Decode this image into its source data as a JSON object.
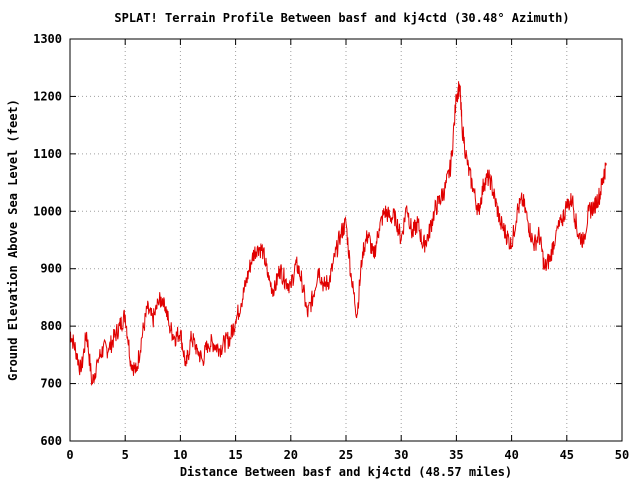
{
  "chart_data": {
    "type": "line",
    "title": "SPLAT! Terrain Profile Between basf and kj4ctd (30.48° Azimuth)",
    "xlabel": "Distance Between basf and kj4ctd (48.57 miles)",
    "ylabel": "Ground Elevation Above Sea Level (feet)",
    "xlim": [
      0,
      50
    ],
    "ylim": [
      600,
      1300
    ],
    "xticks": [
      "0",
      "5",
      "10",
      "15",
      "20",
      "25",
      "30",
      "35",
      "40",
      "45",
      "50"
    ],
    "yticks": [
      "600",
      "700",
      "800",
      "900",
      "1000",
      "1100",
      "1200",
      "1300"
    ],
    "grid": true,
    "series": [
      {
        "color": "#e00000",
        "x": [
          0,
          0.5,
          1.0,
          1.5,
          2.0,
          2.5,
          3.0,
          3.5,
          4.0,
          4.5,
          5.0,
          5.5,
          6.0,
          6.5,
          7.0,
          7.5,
          8.0,
          8.5,
          9.0,
          9.5,
          10.0,
          10.5,
          11.0,
          11.5,
          12.0,
          12.5,
          13.0,
          13.5,
          14.0,
          14.5,
          15.0,
          15.5,
          16.0,
          16.5,
          17.0,
          17.5,
          18.0,
          18.5,
          19.0,
          19.5,
          20.0,
          20.5,
          21.0,
          21.5,
          22.0,
          22.5,
          23.0,
          23.5,
          24.0,
          24.5,
          25.0,
          25.5,
          26.0,
          26.5,
          27.0,
          27.5,
          28.0,
          28.5,
          29.0,
          29.5,
          30.0,
          30.5,
          31.0,
          31.5,
          32.0,
          32.5,
          33.0,
          33.5,
          34.0,
          34.5,
          35.0,
          35.3,
          35.5,
          36.0,
          36.5,
          37.0,
          37.5,
          38.0,
          38.5,
          39.0,
          39.5,
          40.0,
          40.5,
          41.0,
          41.5,
          42.0,
          42.5,
          43.0,
          43.5,
          44.0,
          44.5,
          45.0,
          45.5,
          46.0,
          46.5,
          47.0,
          47.5,
          48.0,
          48.3,
          48.57
        ],
        "y": [
          790,
          760,
          720,
          790,
          700,
          740,
          760,
          760,
          780,
          800,
          820,
          740,
          720,
          780,
          830,
          810,
          840,
          850,
          800,
          780,
          790,
          730,
          780,
          760,
          740,
          770,
          770,
          760,
          770,
          780,
          810,
          840,
          880,
          920,
          940,
          930,
          880,
          860,
          900,
          880,
          870,
          910,
          880,
          820,
          850,
          900,
          870,
          880,
          920,
          960,
          980,
          880,
          820,
          930,
          960,
          920,
          970,
          1000,
          990,
          990,
          950,
          1010,
          960,
          980,
          940,
          960,
          1000,
          1020,
          1040,
          1080,
          1200,
          1220,
          1150,
          1080,
          1040,
          1000,
          1050,
          1060,
          1020,
          980,
          960,
          940,
          1000,
          1020,
          980,
          940,
          960,
          900,
          920,
          960,
          980,
          1010,
          1020,
          960,
          950,
          1000,
          1010,
          1030,
          1060,
          1080
        ]
      }
    ]
  }
}
